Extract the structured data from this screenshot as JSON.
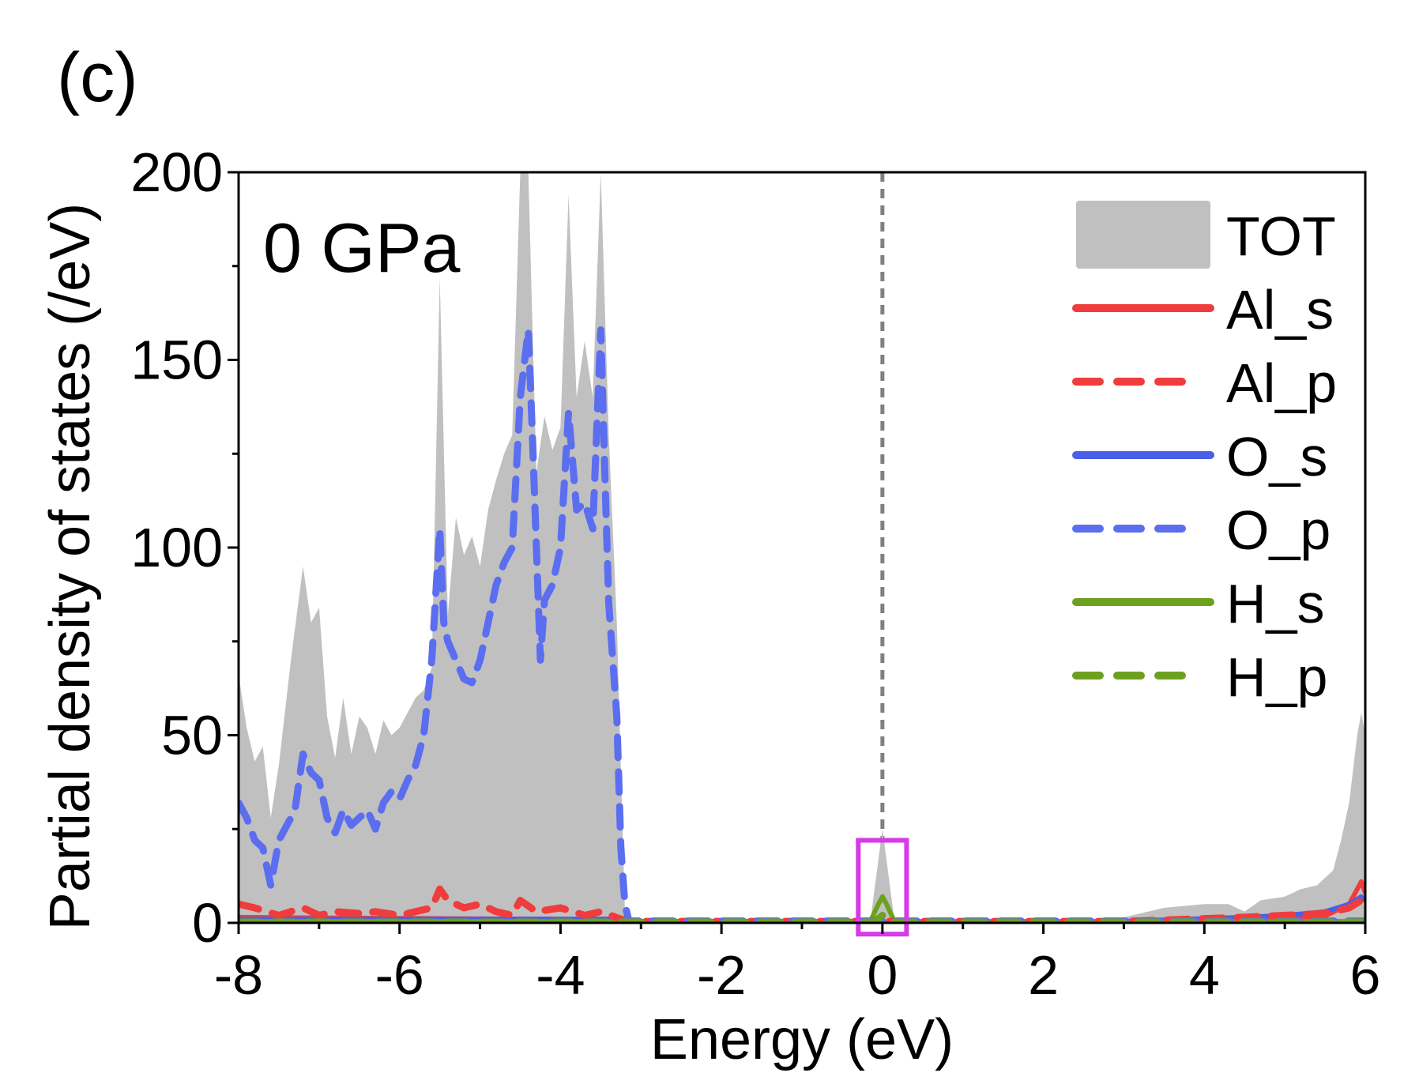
{
  "chart_data": {
    "type": "area",
    "panel_label": "(c)",
    "annotation": "0 GPa",
    "xlabel": "Energy (eV)",
    "ylabel": "Partial density of states (/eV)",
    "xlim": [
      -8,
      6
    ],
    "ylim": [
      0,
      200
    ],
    "xticks": [
      -8,
      -6,
      -4,
      -2,
      0,
      2,
      4,
      6
    ],
    "yticks": [
      0,
      50,
      100,
      150,
      200
    ],
    "fermi_level": 0,
    "highlight_box": {
      "x_range": [
        -0.3,
        0.3
      ],
      "y_range": [
        -3,
        22
      ],
      "color": "#d63be6"
    },
    "series": [
      {
        "name": "TOT",
        "style": "fill",
        "color": "#c0c0c0",
        "points": [
          [
            -8,
            66
          ],
          [
            -7.9,
            52
          ],
          [
            -7.8,
            43
          ],
          [
            -7.7,
            47
          ],
          [
            -7.6,
            28
          ],
          [
            -7.5,
            42
          ],
          [
            -7.35,
            70
          ],
          [
            -7.2,
            95
          ],
          [
            -7.1,
            80
          ],
          [
            -7.0,
            84
          ],
          [
            -6.9,
            55
          ],
          [
            -6.8,
            44
          ],
          [
            -6.7,
            60
          ],
          [
            -6.6,
            45
          ],
          [
            -6.5,
            55
          ],
          [
            -6.4,
            52
          ],
          [
            -6.3,
            45
          ],
          [
            -6.2,
            54
          ],
          [
            -6.1,
            50
          ],
          [
            -6.0,
            52
          ],
          [
            -5.9,
            56
          ],
          [
            -5.8,
            60
          ],
          [
            -5.7,
            62
          ],
          [
            -5.6,
            68
          ],
          [
            -5.5,
            172
          ],
          [
            -5.4,
            82
          ],
          [
            -5.3,
            108
          ],
          [
            -5.2,
            98
          ],
          [
            -5.1,
            103
          ],
          [
            -5.0,
            95
          ],
          [
            -4.9,
            110
          ],
          [
            -4.8,
            118
          ],
          [
            -4.7,
            125
          ],
          [
            -4.6,
            130
          ],
          [
            -4.5,
            200
          ],
          [
            -4.4,
            200
          ],
          [
            -4.3,
            120
          ],
          [
            -4.2,
            135
          ],
          [
            -4.1,
            126
          ],
          [
            -4.0,
            132
          ],
          [
            -3.9,
            194
          ],
          [
            -3.8,
            140
          ],
          [
            -3.7,
            155
          ],
          [
            -3.6,
            140
          ],
          [
            -3.5,
            200
          ],
          [
            -3.4,
            130
          ],
          [
            -3.3,
            80
          ],
          [
            -3.2,
            3
          ],
          [
            -3.1,
            0.5
          ],
          [
            -0.15,
            0.5
          ],
          [
            0,
            25
          ],
          [
            0.15,
            0.5
          ],
          [
            2.5,
            0.5
          ],
          [
            3.0,
            1.5
          ],
          [
            3.5,
            4
          ],
          [
            4.0,
            5
          ],
          [
            4.3,
            5
          ],
          [
            4.5,
            3
          ],
          [
            4.7,
            6
          ],
          [
            5.0,
            7
          ],
          [
            5.2,
            9
          ],
          [
            5.4,
            10
          ],
          [
            5.6,
            14
          ],
          [
            5.7,
            22
          ],
          [
            5.8,
            32
          ],
          [
            5.9,
            50
          ],
          [
            5.95,
            56
          ],
          [
            6.0,
            50
          ]
        ]
      },
      {
        "name": "Al_s",
        "style": "solid",
        "color": "#f03c3c",
        "points": [
          [
            -8,
            1.5
          ],
          [
            -6,
            1.2
          ],
          [
            -4,
            1
          ],
          [
            -3.3,
            1
          ],
          [
            -3.15,
            0.3
          ],
          [
            3.0,
            0.3
          ],
          [
            4.5,
            0.8
          ],
          [
            5.5,
            1.8
          ],
          [
            5.8,
            5
          ],
          [
            5.9,
            9
          ],
          [
            5.95,
            11
          ],
          [
            6.0,
            8
          ]
        ]
      },
      {
        "name": "Al_p",
        "style": "dashed",
        "color": "#f03c3c",
        "points": [
          [
            -8,
            5
          ],
          [
            -7.8,
            4
          ],
          [
            -7.5,
            2
          ],
          [
            -7.2,
            4
          ],
          [
            -7.0,
            2
          ],
          [
            -6.8,
            3
          ],
          [
            -6.5,
            2.5
          ],
          [
            -6.3,
            3
          ],
          [
            -6.0,
            2
          ],
          [
            -5.8,
            3
          ],
          [
            -5.6,
            4
          ],
          [
            -5.5,
            9
          ],
          [
            -5.4,
            6
          ],
          [
            -5.2,
            4
          ],
          [
            -5.0,
            5
          ],
          [
            -4.8,
            3
          ],
          [
            -4.6,
            2
          ],
          [
            -4.5,
            6
          ],
          [
            -4.3,
            3
          ],
          [
            -4.0,
            4
          ],
          [
            -3.7,
            2
          ],
          [
            -3.5,
            3
          ],
          [
            -3.25,
            1
          ],
          [
            -3.15,
            0.4
          ],
          [
            3.0,
            0.4
          ],
          [
            4.5,
            1.5
          ],
          [
            5.5,
            2.5
          ],
          [
            5.8,
            4
          ],
          [
            5.95,
            6
          ],
          [
            6.0,
            5
          ]
        ]
      },
      {
        "name": "O_s",
        "style": "solid",
        "color": "#4a5fe8",
        "points": [
          [
            -8,
            1
          ],
          [
            -6,
            1
          ],
          [
            -4,
            1
          ],
          [
            -3.3,
            1
          ],
          [
            -3.15,
            0.3
          ],
          [
            2.8,
            0.3
          ],
          [
            3.5,
            0.8
          ],
          [
            4.5,
            1.5
          ],
          [
            5.0,
            2
          ],
          [
            5.5,
            3
          ],
          [
            5.8,
            5
          ],
          [
            5.95,
            7
          ],
          [
            6.0,
            6
          ]
        ]
      },
      {
        "name": "O_p",
        "style": "dashed",
        "color": "#5b6ef0",
        "points": [
          [
            -8,
            32
          ],
          [
            -7.9,
            28
          ],
          [
            -7.8,
            22
          ],
          [
            -7.7,
            20
          ],
          [
            -7.6,
            10
          ],
          [
            -7.5,
            22
          ],
          [
            -7.3,
            30
          ],
          [
            -7.2,
            45
          ],
          [
            -7.1,
            40
          ],
          [
            -7.0,
            38
          ],
          [
            -6.9,
            28
          ],
          [
            -6.8,
            24
          ],
          [
            -6.7,
            30
          ],
          [
            -6.6,
            26
          ],
          [
            -6.5,
            28
          ],
          [
            -6.4,
            30
          ],
          [
            -6.3,
            25
          ],
          [
            -6.2,
            32
          ],
          [
            -6.1,
            35
          ],
          [
            -6.0,
            33
          ],
          [
            -5.9,
            38
          ],
          [
            -5.8,
            42
          ],
          [
            -5.7,
            50
          ],
          [
            -5.6,
            70
          ],
          [
            -5.5,
            105
          ],
          [
            -5.45,
            80
          ],
          [
            -5.4,
            75
          ],
          [
            -5.3,
            70
          ],
          [
            -5.2,
            65
          ],
          [
            -5.1,
            64
          ],
          [
            -5.0,
            70
          ],
          [
            -4.9,
            80
          ],
          [
            -4.8,
            90
          ],
          [
            -4.7,
            96
          ],
          [
            -4.6,
            100
          ],
          [
            -4.5,
            140
          ],
          [
            -4.4,
            158
          ],
          [
            -4.35,
            130
          ],
          [
            -4.3,
            100
          ],
          [
            -4.25,
            70
          ],
          [
            -4.2,
            86
          ],
          [
            -4.1,
            90
          ],
          [
            -4.0,
            100
          ],
          [
            -3.9,
            136
          ],
          [
            -3.8,
            110
          ],
          [
            -3.7,
            112
          ],
          [
            -3.6,
            105
          ],
          [
            -3.5,
            158
          ],
          [
            -3.45,
            120
          ],
          [
            -3.4,
            85
          ],
          [
            -3.3,
            55
          ],
          [
            -3.25,
            20
          ],
          [
            -3.2,
            5
          ],
          [
            -3.15,
            0.5
          ],
          [
            6,
            0.5
          ]
        ]
      },
      {
        "name": "H_s",
        "style": "solid",
        "color": "#6ea020",
        "points": [
          [
            -8,
            0.4
          ],
          [
            -3.3,
            0.4
          ],
          [
            -0.15,
            0.4
          ],
          [
            -0.05,
            5
          ],
          [
            0,
            7
          ],
          [
            0.05,
            5
          ],
          [
            0.15,
            0.4
          ],
          [
            6.0,
            0.4
          ]
        ]
      },
      {
        "name": "H_p",
        "style": "dashed",
        "color": "#6ea020",
        "points": [
          [
            -8,
            0.2
          ],
          [
            -0.1,
            0.2
          ],
          [
            0,
            2
          ],
          [
            0.1,
            0.2
          ],
          [
            6.0,
            0.2
          ]
        ]
      }
    ],
    "legend": [
      "TOT",
      "Al_s",
      "Al_p",
      "O_s",
      "O_p",
      "H_s",
      "H_p"
    ],
    "legend_position": "top-right"
  }
}
